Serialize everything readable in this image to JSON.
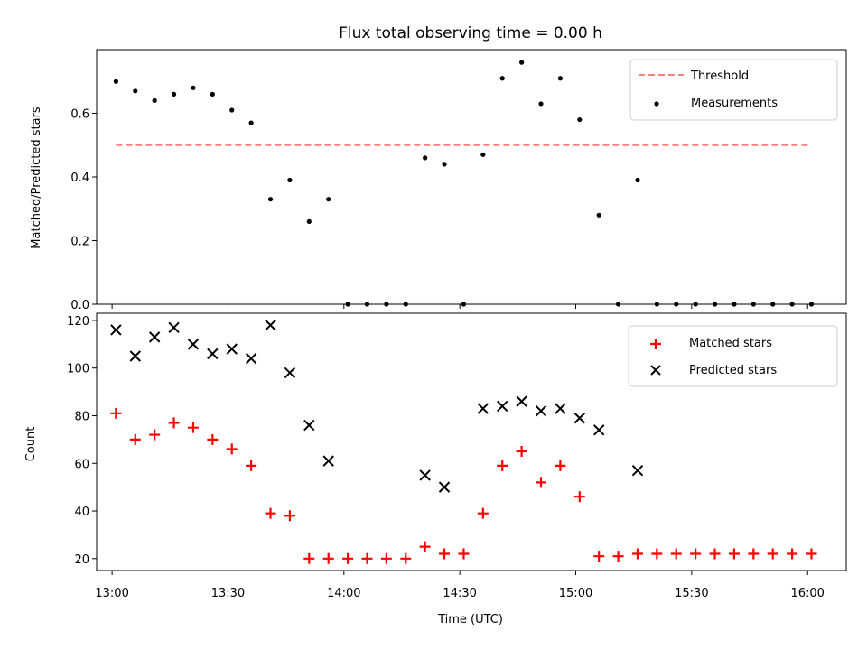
{
  "chart_data": [
    {
      "type": "scatter",
      "title": "Flux total observing time = 0.00 h",
      "xlabel": "",
      "ylabel": "Matched/Predicted stars",
      "ylim": [
        0,
        0.8
      ],
      "xlim": [
        "12:56",
        "16:10"
      ],
      "yticks": [
        0.0,
        0.2,
        0.4,
        0.6
      ],
      "ytick_labels": [
        "0.0",
        "0.2",
        "0.4",
        "0.6"
      ],
      "legend_position": "top-right",
      "threshold": {
        "name": "Threshold",
        "value": 0.5,
        "x_start": "13:01",
        "x_end": "16:01",
        "color": "#ff7f7f"
      },
      "series": [
        {
          "name": "Measurements",
          "color": "#000000",
          "points": [
            [
              "13:01",
              0.7
            ],
            [
              "13:06",
              0.67
            ],
            [
              "13:11",
              0.64
            ],
            [
              "13:16",
              0.66
            ],
            [
              "13:21",
              0.68
            ],
            [
              "13:26",
              0.66
            ],
            [
              "13:31",
              0.61
            ],
            [
              "13:36",
              0.57
            ],
            [
              "13:41",
              0.33
            ],
            [
              "13:46",
              0.39
            ],
            [
              "13:51",
              0.26
            ],
            [
              "13:56",
              0.33
            ],
            [
              "14:01",
              0.0
            ],
            [
              "14:06",
              0.0
            ],
            [
              "14:11",
              0.0
            ],
            [
              "14:16",
              0.0
            ],
            [
              "14:21",
              0.46
            ],
            [
              "14:26",
              0.44
            ],
            [
              "14:31",
              0.0
            ],
            [
              "14:36",
              0.47
            ],
            [
              "14:41",
              0.71
            ],
            [
              "14:46",
              0.76
            ],
            [
              "14:51",
              0.63
            ],
            [
              "14:56",
              0.71
            ],
            [
              "15:01",
              0.58
            ],
            [
              "15:06",
              0.28
            ],
            [
              "15:11",
              0.0
            ],
            [
              "15:16",
              0.39
            ],
            [
              "15:21",
              0.0
            ],
            [
              "15:26",
              0.0
            ],
            [
              "15:31",
              0.0
            ],
            [
              "15:36",
              0.0
            ],
            [
              "15:41",
              0.0
            ],
            [
              "15:46",
              0.0
            ],
            [
              "15:51",
              0.0
            ],
            [
              "15:56",
              0.0
            ],
            [
              "16:01",
              0.0
            ]
          ]
        }
      ]
    },
    {
      "type": "scatter",
      "title": "",
      "xlabel": "Time (UTC)",
      "ylabel": "Count",
      "ylim": [
        15,
        123
      ],
      "xlim": [
        "12:56",
        "16:10"
      ],
      "xticks": [
        "13:00",
        "13:30",
        "14:00",
        "14:30",
        "15:00",
        "15:30",
        "16:00"
      ],
      "yticks": [
        20,
        40,
        60,
        80,
        100,
        120
      ],
      "ytick_labels": [
        "20",
        "40",
        "60",
        "80",
        "100",
        "120"
      ],
      "legend_position": "top-right",
      "series": [
        {
          "name": "Matched stars",
          "color": "#ff0000",
          "marker": "+",
          "points": [
            [
              "13:01",
              81
            ],
            [
              "13:06",
              70
            ],
            [
              "13:11",
              72
            ],
            [
              "13:16",
              77
            ],
            [
              "13:21",
              75
            ],
            [
              "13:26",
              70
            ],
            [
              "13:31",
              66
            ],
            [
              "13:36",
              59
            ],
            [
              "13:41",
              39
            ],
            [
              "13:46",
              38
            ],
            [
              "13:51",
              20
            ],
            [
              "13:56",
              20
            ],
            [
              "14:01",
              20
            ],
            [
              "14:06",
              20
            ],
            [
              "14:11",
              20
            ],
            [
              "14:16",
              20
            ],
            [
              "14:21",
              25
            ],
            [
              "14:26",
              22
            ],
            [
              "14:31",
              22
            ],
            [
              "14:36",
              39
            ],
            [
              "14:41",
              59
            ],
            [
              "14:46",
              65
            ],
            [
              "14:51",
              52
            ],
            [
              "14:56",
              59
            ],
            [
              "15:01",
              46
            ],
            [
              "15:06",
              21
            ],
            [
              "15:11",
              21
            ],
            [
              "15:16",
              22
            ],
            [
              "15:21",
              22
            ],
            [
              "15:26",
              22
            ],
            [
              "15:31",
              22
            ],
            [
              "15:36",
              22
            ],
            [
              "15:41",
              22
            ],
            [
              "15:46",
              22
            ],
            [
              "15:51",
              22
            ],
            [
              "15:56",
              22
            ],
            [
              "16:01",
              22
            ]
          ]
        },
        {
          "name": "Predicted stars",
          "color": "#000000",
          "marker": "x",
          "points": [
            [
              "13:01",
              116
            ],
            [
              "13:06",
              105
            ],
            [
              "13:11",
              113
            ],
            [
              "13:16",
              117
            ],
            [
              "13:21",
              110
            ],
            [
              "13:26",
              106
            ],
            [
              "13:31",
              108
            ],
            [
              "13:36",
              104
            ],
            [
              "13:41",
              118
            ],
            [
              "13:46",
              98
            ],
            [
              "13:51",
              76
            ],
            [
              "13:56",
              61
            ],
            [
              "14:21",
              55
            ],
            [
              "14:26",
              50
            ],
            [
              "14:36",
              83
            ],
            [
              "14:41",
              84
            ],
            [
              "14:46",
              86
            ],
            [
              "14:51",
              82
            ],
            [
              "14:56",
              83
            ],
            [
              "15:01",
              79
            ],
            [
              "15:06",
              74
            ],
            [
              "15:16",
              57
            ]
          ]
        }
      ]
    }
  ]
}
